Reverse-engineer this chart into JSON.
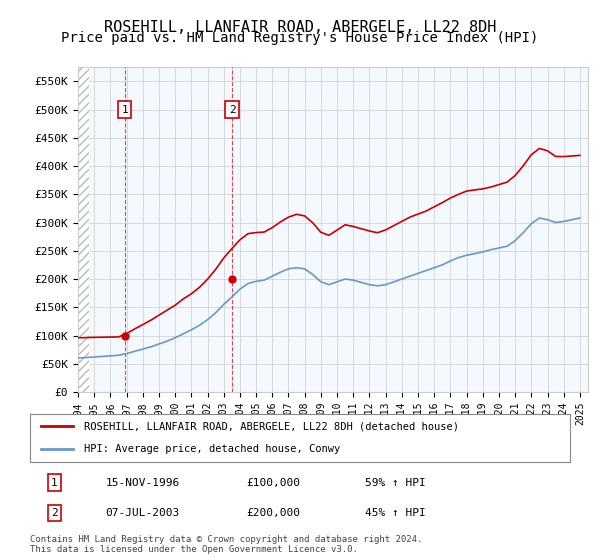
{
  "title": "ROSEHILL, LLANFAIR ROAD, ABERGELE, LL22 8DH",
  "subtitle": "Price paid vs. HM Land Registry's House Price Index (HPI)",
  "title_fontsize": 11,
  "subtitle_fontsize": 10,
  "ylabel_ticks": [
    "£0",
    "£50K",
    "£100K",
    "£150K",
    "£200K",
    "£250K",
    "£300K",
    "£350K",
    "£400K",
    "£450K",
    "£500K",
    "£550K"
  ],
  "ylim": [
    0,
    575000
  ],
  "yticks": [
    0,
    50000,
    100000,
    150000,
    200000,
    250000,
    300000,
    350000,
    400000,
    450000,
    500000,
    550000
  ],
  "hpi_color": "#6699cc",
  "price_color": "#cc0000",
  "background_color": "#ddeeff",
  "plot_bg": "#ffffff",
  "hatch_color": "#cccccc",
  "grid_color": "#cccccc",
  "sale1": {
    "date_num": 1996.88,
    "price": 100000,
    "label": "1"
  },
  "sale2": {
    "date_num": 2003.52,
    "price": 200000,
    "label": "2"
  },
  "sale1_vline_x": 1996.88,
  "sale2_vline_x": 2003.52,
  "legend_line1": "ROSEHILL, LLANFAIR ROAD, ABERGELE, LL22 8DH (detached house)",
  "legend_line2": "HPI: Average price, detached house, Conwy",
  "table_row1": [
    "1",
    "15-NOV-1996",
    "£100,000",
    "59% ↑ HPI"
  ],
  "table_row2": [
    "2",
    "07-JUL-2003",
    "£200,000",
    "45% ↑ HPI"
  ],
  "footnote": "Contains HM Land Registry data © Crown copyright and database right 2024.\nThis data is licensed under the Open Government Licence v3.0.",
  "xmin": 1994,
  "xmax": 2025.5
}
